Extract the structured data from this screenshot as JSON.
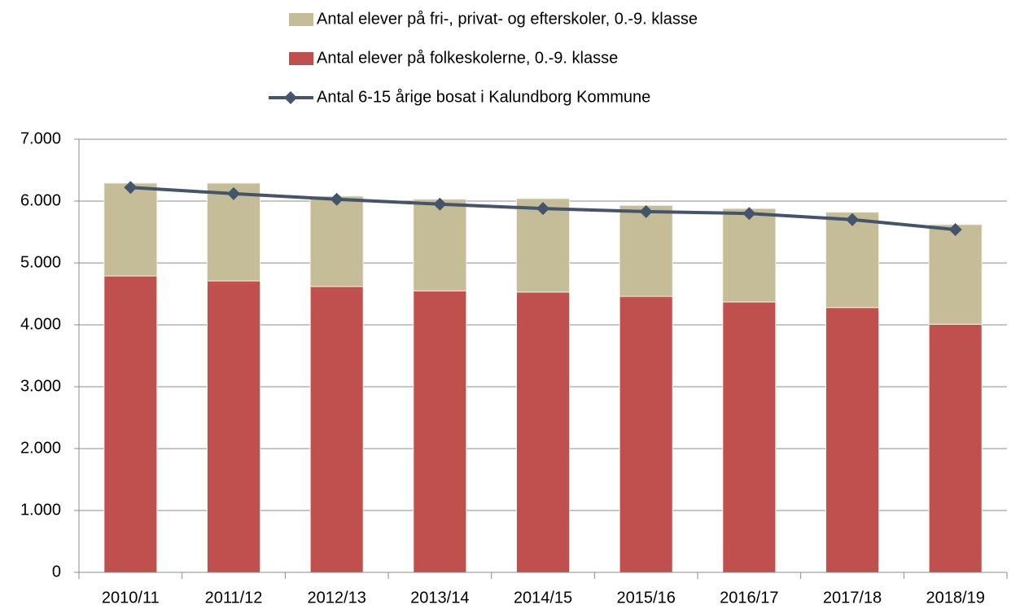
{
  "chart_data": {
    "type": "stacked_bar_line",
    "categories": [
      "2010/11",
      "2011/12",
      "2012/13",
      "2013/14",
      "2014/15",
      "2015/16",
      "2016/17",
      "2017/18",
      "2018/19"
    ],
    "series": [
      {
        "name": "Antal elever på folkeskolerne, 0.-9. klasse",
        "type": "bar",
        "color": "#c0504d",
        "values": [
          4790,
          4710,
          4620,
          4550,
          4530,
          4460,
          4370,
          4280,
          4010
        ]
      },
      {
        "name": "Antal elever på fri-, privat- og efterskoler, 0.-9. klasse",
        "type": "bar",
        "color": "#c4bd97",
        "values": [
          1500,
          1580,
          1460,
          1480,
          1510,
          1470,
          1510,
          1540,
          1610
        ]
      },
      {
        "name": "Antal 6-15 årige bosat i Kalundborg Kommune",
        "type": "line",
        "color": "#44546a",
        "values": [
          6220,
          6120,
          6030,
          5950,
          5880,
          5830,
          5800,
          5700,
          5540
        ]
      }
    ],
    "ylim": [
      0,
      7000
    ],
    "yticks": [
      0,
      {
        "value": 1000,
        "label": "1.000"
      },
      {
        "value": 2000,
        "label": "2.000"
      },
      {
        "value": 3000,
        "label": "3.000"
      },
      {
        "value": 4000,
        "label": "4.000"
      },
      {
        "value": 5000,
        "label": "5.000"
      },
      {
        "value": 6000,
        "label": "6.000"
      },
      {
        "value": 7000,
        "label": "7.000"
      }
    ],
    "grid": true,
    "legend": "top"
  }
}
